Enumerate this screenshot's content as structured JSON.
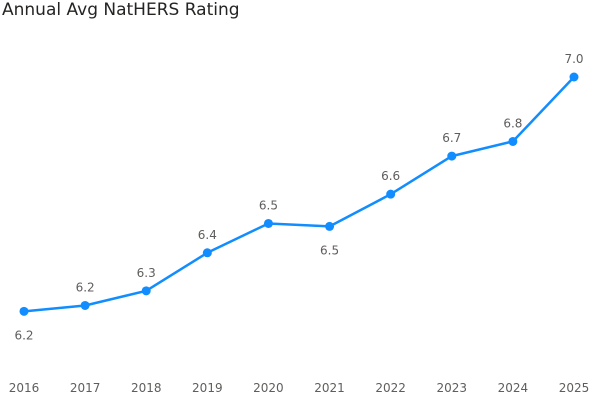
{
  "chart_data": {
    "type": "line",
    "title": "Annual Avg NatHERS Rating",
    "xlabel": "",
    "ylabel": "",
    "categories": [
      "2016",
      "2017",
      "2018",
      "2019",
      "2020",
      "2021",
      "2022",
      "2023",
      "2024",
      "2025"
    ],
    "series": [
      {
        "values": [
          6.2,
          6.22,
          6.27,
          6.4,
          6.5,
          6.49,
          6.6,
          6.73,
          6.78,
          7.0
        ],
        "data_labels": [
          "6.2",
          "6.2",
          "6.3",
          "6.4",
          "6.5",
          "6.5",
          "6.6",
          "6.7",
          "6.8",
          "7.0"
        ],
        "label_positions": [
          "below",
          "above",
          "above",
          "above",
          "above",
          "below",
          "above",
          "above",
          "above",
          "above"
        ],
        "color": "#118DFF"
      }
    ],
    "ylim": [
      6.15,
      7.0
    ],
    "grid": false,
    "legend": "none"
  }
}
